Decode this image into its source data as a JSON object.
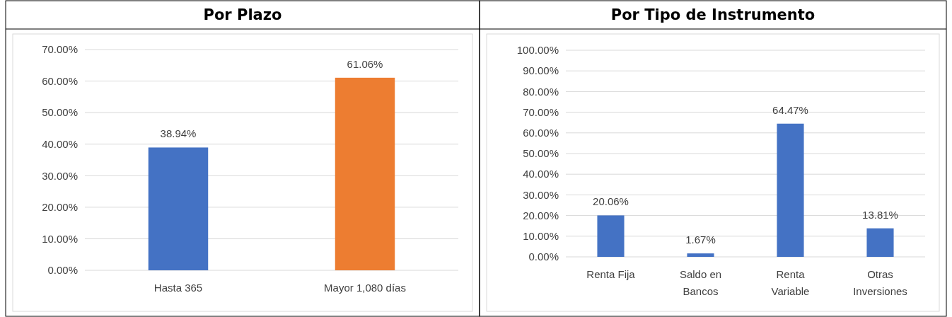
{
  "chart_data": [
    {
      "type": "bar",
      "title": "Por Plazo",
      "categories": [
        "Hasta 365",
        "Mayor 1,080 días"
      ],
      "values": [
        38.94,
        61.06
      ],
      "colors": [
        "#4472c4",
        "#ed7d31"
      ],
      "value_labels": [
        "38.94%",
        "61.06%"
      ],
      "ylim": [
        0,
        70
      ],
      "yticks": [
        {
          "value": 0,
          "label": "0.00%"
        },
        {
          "value": 10,
          "label": "10.00%"
        },
        {
          "value": 20,
          "label": "20.00%"
        },
        {
          "value": 30,
          "label": "30.00%"
        },
        {
          "value": 40,
          "label": "40.00%"
        },
        {
          "value": 50,
          "label": "50.00%"
        },
        {
          "value": 60,
          "label": "60.00%"
        },
        {
          "value": 70,
          "label": "70.00%"
        }
      ],
      "grid": "y"
    },
    {
      "type": "bar",
      "title": "Por Tipo de Instrumento",
      "categories": [
        "Renta Fija",
        "Saldo en Bancos",
        "Renta Variable",
        "Otras Inversiones"
      ],
      "values": [
        20.06,
        1.67,
        64.47,
        13.81
      ],
      "color": "#4472c4",
      "value_labels": [
        "20.06%",
        "1.67%",
        "64.47%",
        "13.81%"
      ],
      "ylim": [
        0,
        100
      ],
      "yticks": [
        {
          "value": 0,
          "label": "0.00%"
        },
        {
          "value": 10,
          "label": "10.00%"
        },
        {
          "value": 20,
          "label": "20.00%"
        },
        {
          "value": 30,
          "label": "30.00%"
        },
        {
          "value": 40,
          "label": "40.00%"
        },
        {
          "value": 50,
          "label": "50.00%"
        },
        {
          "value": 60,
          "label": "60.00%"
        },
        {
          "value": 70,
          "label": "70.00%"
        },
        {
          "value": 80,
          "label": "80.00%"
        },
        {
          "value": 90,
          "label": "90.00%"
        },
        {
          "value": 100,
          "label": "100.00%"
        }
      ],
      "grid": "y"
    }
  ]
}
